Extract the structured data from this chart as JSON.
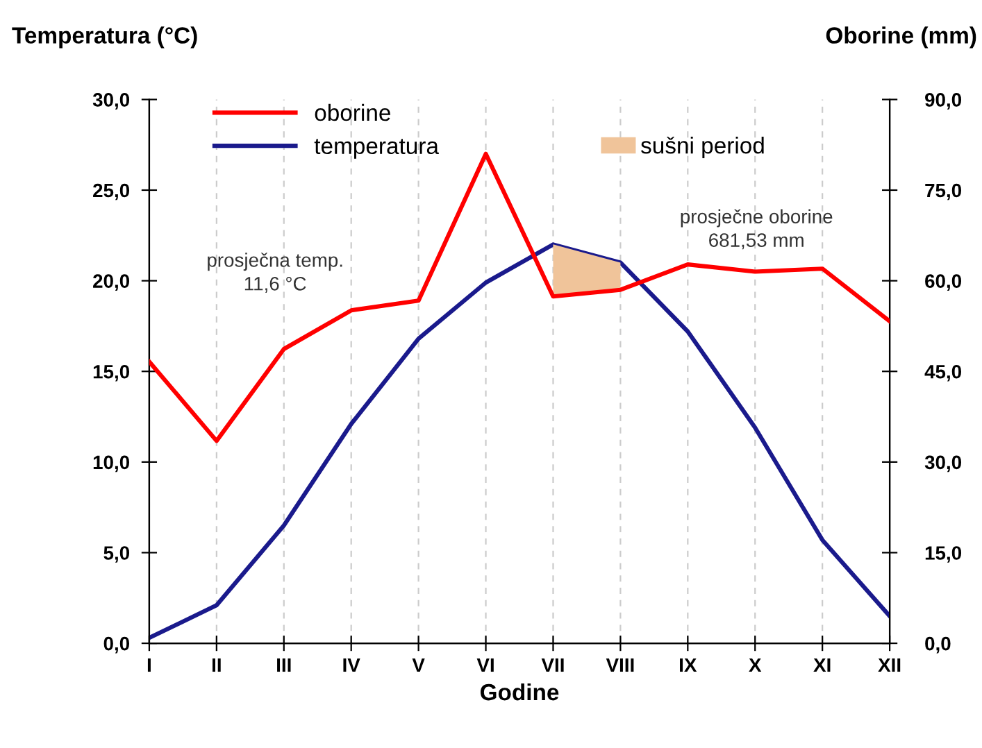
{
  "chart_data": {
    "type": "line",
    "xlabel": "Godine",
    "ylabel": "Temperatura (°C)",
    "y2label": "Oborine (mm)",
    "categories": [
      "I",
      "II",
      "III",
      "IV",
      "V",
      "VI",
      "VII",
      "VIII",
      "IX",
      "X",
      "XI",
      "XII"
    ],
    "ylim": [
      0,
      30
    ],
    "yticks": [
      {
        "value": 0,
        "label": "0,0"
      },
      {
        "value": 5,
        "label": "5,0"
      },
      {
        "value": 10,
        "label": "10,0"
      },
      {
        "value": 15,
        "label": "15,0"
      },
      {
        "value": 20,
        "label": "20,0"
      },
      {
        "value": 25,
        "label": "25,0"
      },
      {
        "value": 30,
        "label": "30,0"
      }
    ],
    "y2lim": [
      0,
      90
    ],
    "y2ticks": [
      {
        "value": 0,
        "label": "0,0"
      },
      {
        "value": 15,
        "label": "15,0"
      },
      {
        "value": 30,
        "label": "30,0"
      },
      {
        "value": 45,
        "label": "45,0"
      },
      {
        "value": 60,
        "label": "60,0"
      },
      {
        "value": 75,
        "label": "75,0"
      },
      {
        "value": 90,
        "label": "90,0"
      }
    ],
    "series": [
      {
        "name": "oborine",
        "color": "#ff0000",
        "axis": "y2",
        "values": [
          46.6,
          33.5,
          48.7,
          55.1,
          56.7,
          81.0,
          57.4,
          58.5,
          62.7,
          61.5,
          62.0,
          53.3
        ]
      },
      {
        "name": "temperatura",
        "color": "#1a1a8c",
        "values": [
          0.3,
          2.1,
          6.5,
          12.1,
          16.8,
          19.9,
          22.0,
          21.0,
          17.2,
          11.9,
          5.7,
          1.5
        ]
      },
      {
        "name": "sušni period",
        "type": "area",
        "color": "#f0c49a",
        "axis": "y2",
        "values": [
          null,
          null,
          null,
          null,
          null,
          null,
          66.0,
          63.0,
          null,
          null,
          null,
          null
        ]
      }
    ],
    "annotations": [
      "prosječna temp.\n11,6 °C",
      "prosječne oborine\n681,53 mm"
    ],
    "grid": "x",
    "legend": "top left",
    "line_style": "solid",
    "marker": "none"
  }
}
